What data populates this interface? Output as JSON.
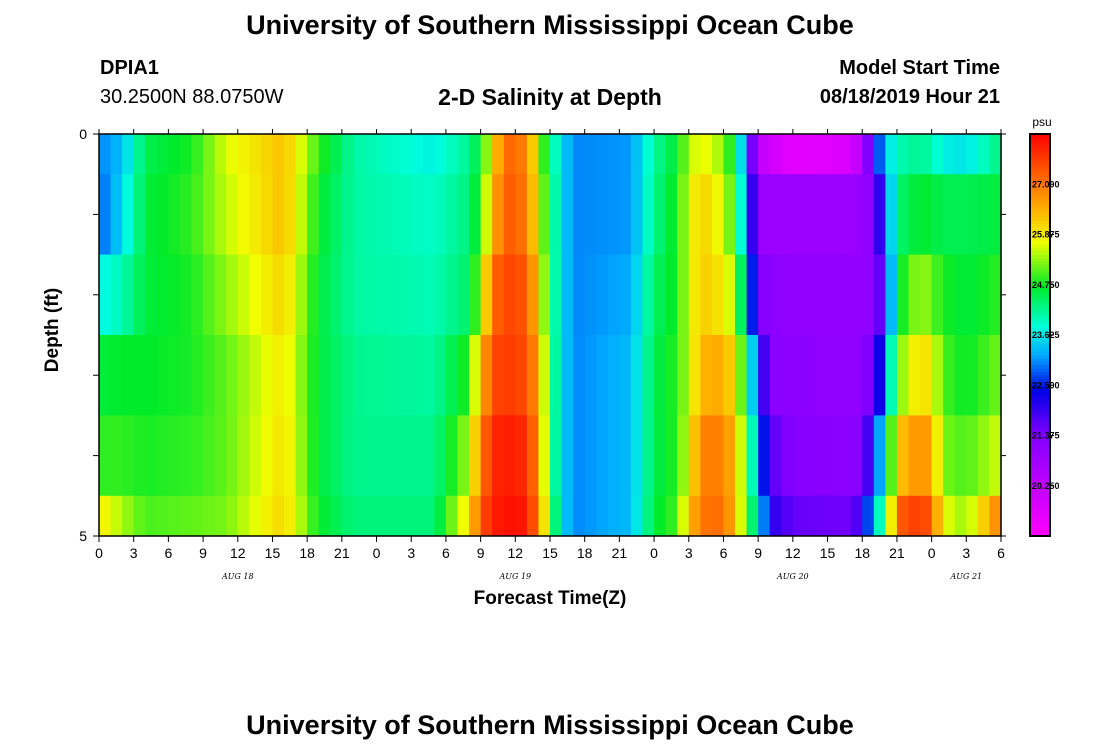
{
  "header": {
    "title": "University of Southern Mississippi Ocean Cube",
    "station": "DPIA1",
    "location": "30.2500N 88.0750W",
    "product": "2-D Salinity at Depth",
    "start_label": "Model Start Time",
    "start_value": "08/18/2019 Hour 21"
  },
  "footer": {
    "title": "University of Southern Mississippi Ocean Cube"
  },
  "chart_data": {
    "type": "heatmap",
    "title": "2-D Salinity at Depth",
    "xlabel": "Forecast Time(Z)",
    "ylabel": "Depth (ft)",
    "x_hours_range": [
      0,
      78
    ],
    "x_tick_labels": [
      "0",
      "3",
      "6",
      "9",
      "12",
      "15",
      "18",
      "21",
      "0",
      "3",
      "6",
      "9",
      "12",
      "15",
      "18",
      "21",
      "0",
      "3",
      "6",
      "9",
      "12",
      "15",
      "18",
      "21",
      "0",
      "3",
      "6"
    ],
    "date_labels": [
      {
        "label": "AUG 18",
        "hour": 12
      },
      {
        "label": "AUG 19",
        "hour": 36
      },
      {
        "label": "AUG 20",
        "hour": 60
      },
      {
        "label": "AUG 21",
        "hour": 75
      }
    ],
    "y_ticks": [
      "0",
      "5"
    ],
    "y_range": [
      0,
      5
    ],
    "colorbar": {
      "unit": "psu",
      "min": 19.125,
      "max": 28.125,
      "tick_values": [
        27.0,
        25.875,
        24.75,
        23.625,
        22.5,
        21.375,
        20.25
      ],
      "tick_labels": [
        "27.000",
        "25.875",
        "24.750",
        "23.625",
        "22.500",
        "21.375",
        "20.250"
      ]
    },
    "salinity_keyframes": [
      {
        "hour": 0,
        "levels": [
          23.0,
          22.8,
          23.7,
          24.6,
          24.9,
          25.9
        ]
      },
      {
        "hour": 2,
        "levels": [
          23.3,
          23.5,
          24.0,
          24.7,
          24.9,
          25.4
        ]
      },
      {
        "hour": 4,
        "levels": [
          24.5,
          24.6,
          24.6,
          24.7,
          24.8,
          25.0
        ]
      },
      {
        "hour": 8,
        "levels": [
          24.8,
          24.9,
          24.8,
          24.8,
          24.9,
          25.1
        ]
      },
      {
        "hour": 11,
        "levels": [
          25.6,
          25.5,
          25.3,
          25.1,
          25.1,
          25.2
        ]
      },
      {
        "hour": 16,
        "levels": [
          26.3,
          26.3,
          26.1,
          25.9,
          26.0,
          26.1
        ]
      },
      {
        "hour": 19,
        "levels": [
          24.9,
          24.7,
          24.6,
          24.6,
          24.6,
          24.7
        ]
      },
      {
        "hour": 22,
        "levels": [
          24.1,
          24.1,
          24.1,
          24.2,
          24.2,
          24.3
        ]
      },
      {
        "hour": 29,
        "levels": [
          23.7,
          23.9,
          24.0,
          24.1,
          24.2,
          24.3
        ]
      },
      {
        "hour": 32,
        "levels": [
          24.2,
          24.3,
          24.4,
          24.9,
          25.4,
          26.0
        ]
      },
      {
        "hour": 33,
        "levels": [
          24.7,
          24.9,
          25.4,
          26.3,
          26.9,
          27.3
        ]
      },
      {
        "hour": 34,
        "levels": [
          25.8,
          26.2,
          27.0,
          27.4,
          27.7,
          27.8
        ]
      },
      {
        "hour": 35,
        "levels": [
          27.2,
          27.3,
          27.5,
          27.6,
          27.9,
          28.0
        ]
      },
      {
        "hour": 37,
        "levels": [
          26.9,
          27.0,
          27.3,
          27.4,
          27.7,
          27.9
        ]
      },
      {
        "hour": 38,
        "levels": [
          25.5,
          25.7,
          26.1,
          26.5,
          26.7,
          26.9
        ]
      },
      {
        "hour": 39,
        "levels": [
          24.3,
          24.5,
          24.5,
          24.6,
          24.6,
          25.0
        ]
      },
      {
        "hour": 40,
        "levels": [
          23.6,
          23.6,
          23.6,
          23.6,
          23.6,
          23.6
        ]
      },
      {
        "hour": 41,
        "levels": [
          23.0,
          23.0,
          23.0,
          23.0,
          23.0,
          23.0
        ]
      },
      {
        "hour": 46,
        "levels": [
          23.1,
          23.1,
          23.2,
          23.3,
          23.3,
          23.3
        ]
      },
      {
        "hour": 48,
        "levels": [
          24.1,
          24.2,
          24.4,
          24.5,
          24.5,
          24.6
        ]
      },
      {
        "hour": 50,
        "levels": [
          24.7,
          24.8,
          24.8,
          24.9,
          24.9,
          25.0
        ]
      },
      {
        "hour": 51,
        "levels": [
          25.4,
          25.6,
          25.6,
          25.5,
          25.7,
          26.2
        ]
      },
      {
        "hour": 52,
        "levels": [
          25.8,
          26.2,
          26.2,
          26.4,
          26.9,
          27.0
        ]
      },
      {
        "hour": 54,
        "levels": [
          25.3,
          25.6,
          25.9,
          26.5,
          26.9,
          27.1
        ]
      },
      {
        "hour": 55,
        "levels": [
          24.5,
          24.8,
          25.3,
          25.9,
          26.3,
          26.3
        ]
      },
      {
        "hour": 56,
        "levels": [
          22.6,
          22.9,
          23.6,
          24.4,
          24.8,
          24.9
        ]
      },
      {
        "hour": 57,
        "levels": [
          20.3,
          21.0,
          21.4,
          22.5,
          23.2,
          23.8
        ]
      },
      {
        "hour": 58,
        "levels": [
          20.0,
          20.9,
          21.2,
          21.2,
          21.7,
          22.1
        ]
      },
      {
        "hour": 60,
        "levels": [
          19.6,
          20.9,
          21.1,
          21.2,
          21.3,
          21.6
        ]
      },
      {
        "hour": 65,
        "levels": [
          19.8,
          20.9,
          21.1,
          21.1,
          21.2,
          21.5
        ]
      },
      {
        "hour": 66,
        "levels": [
          20.5,
          21.0,
          21.1,
          21.2,
          21.3,
          22.0
        ]
      },
      {
        "hour": 67,
        "levels": [
          22.2,
          21.3,
          21.2,
          21.6,
          22.4,
          23.4
        ]
      },
      {
        "hour": 68,
        "levels": [
          23.4,
          22.7,
          22.0,
          22.9,
          23.9,
          24.5
        ]
      },
      {
        "hour": 69,
        "levels": [
          24.0,
          24.3,
          24.6,
          25.1,
          26.2,
          27.2
        ]
      },
      {
        "hour": 71,
        "levels": [
          24.2,
          24.7,
          25.4,
          26.1,
          26.8,
          27.6
        ]
      },
      {
        "hour": 72,
        "levels": [
          24.0,
          24.6,
          25.1,
          25.8,
          26.5,
          27.2
        ]
      },
      {
        "hour": 73,
        "levels": [
          23.7,
          24.5,
          24.8,
          25.0,
          25.2,
          25.7
        ]
      },
      {
        "hour": 75,
        "levels": [
          23.6,
          24.5,
          24.6,
          24.7,
          25.0,
          25.3
        ]
      },
      {
        "hour": 78,
        "levels": [
          24.3,
          24.6,
          24.9,
          25.2,
          25.6,
          27.0
        ]
      }
    ]
  }
}
